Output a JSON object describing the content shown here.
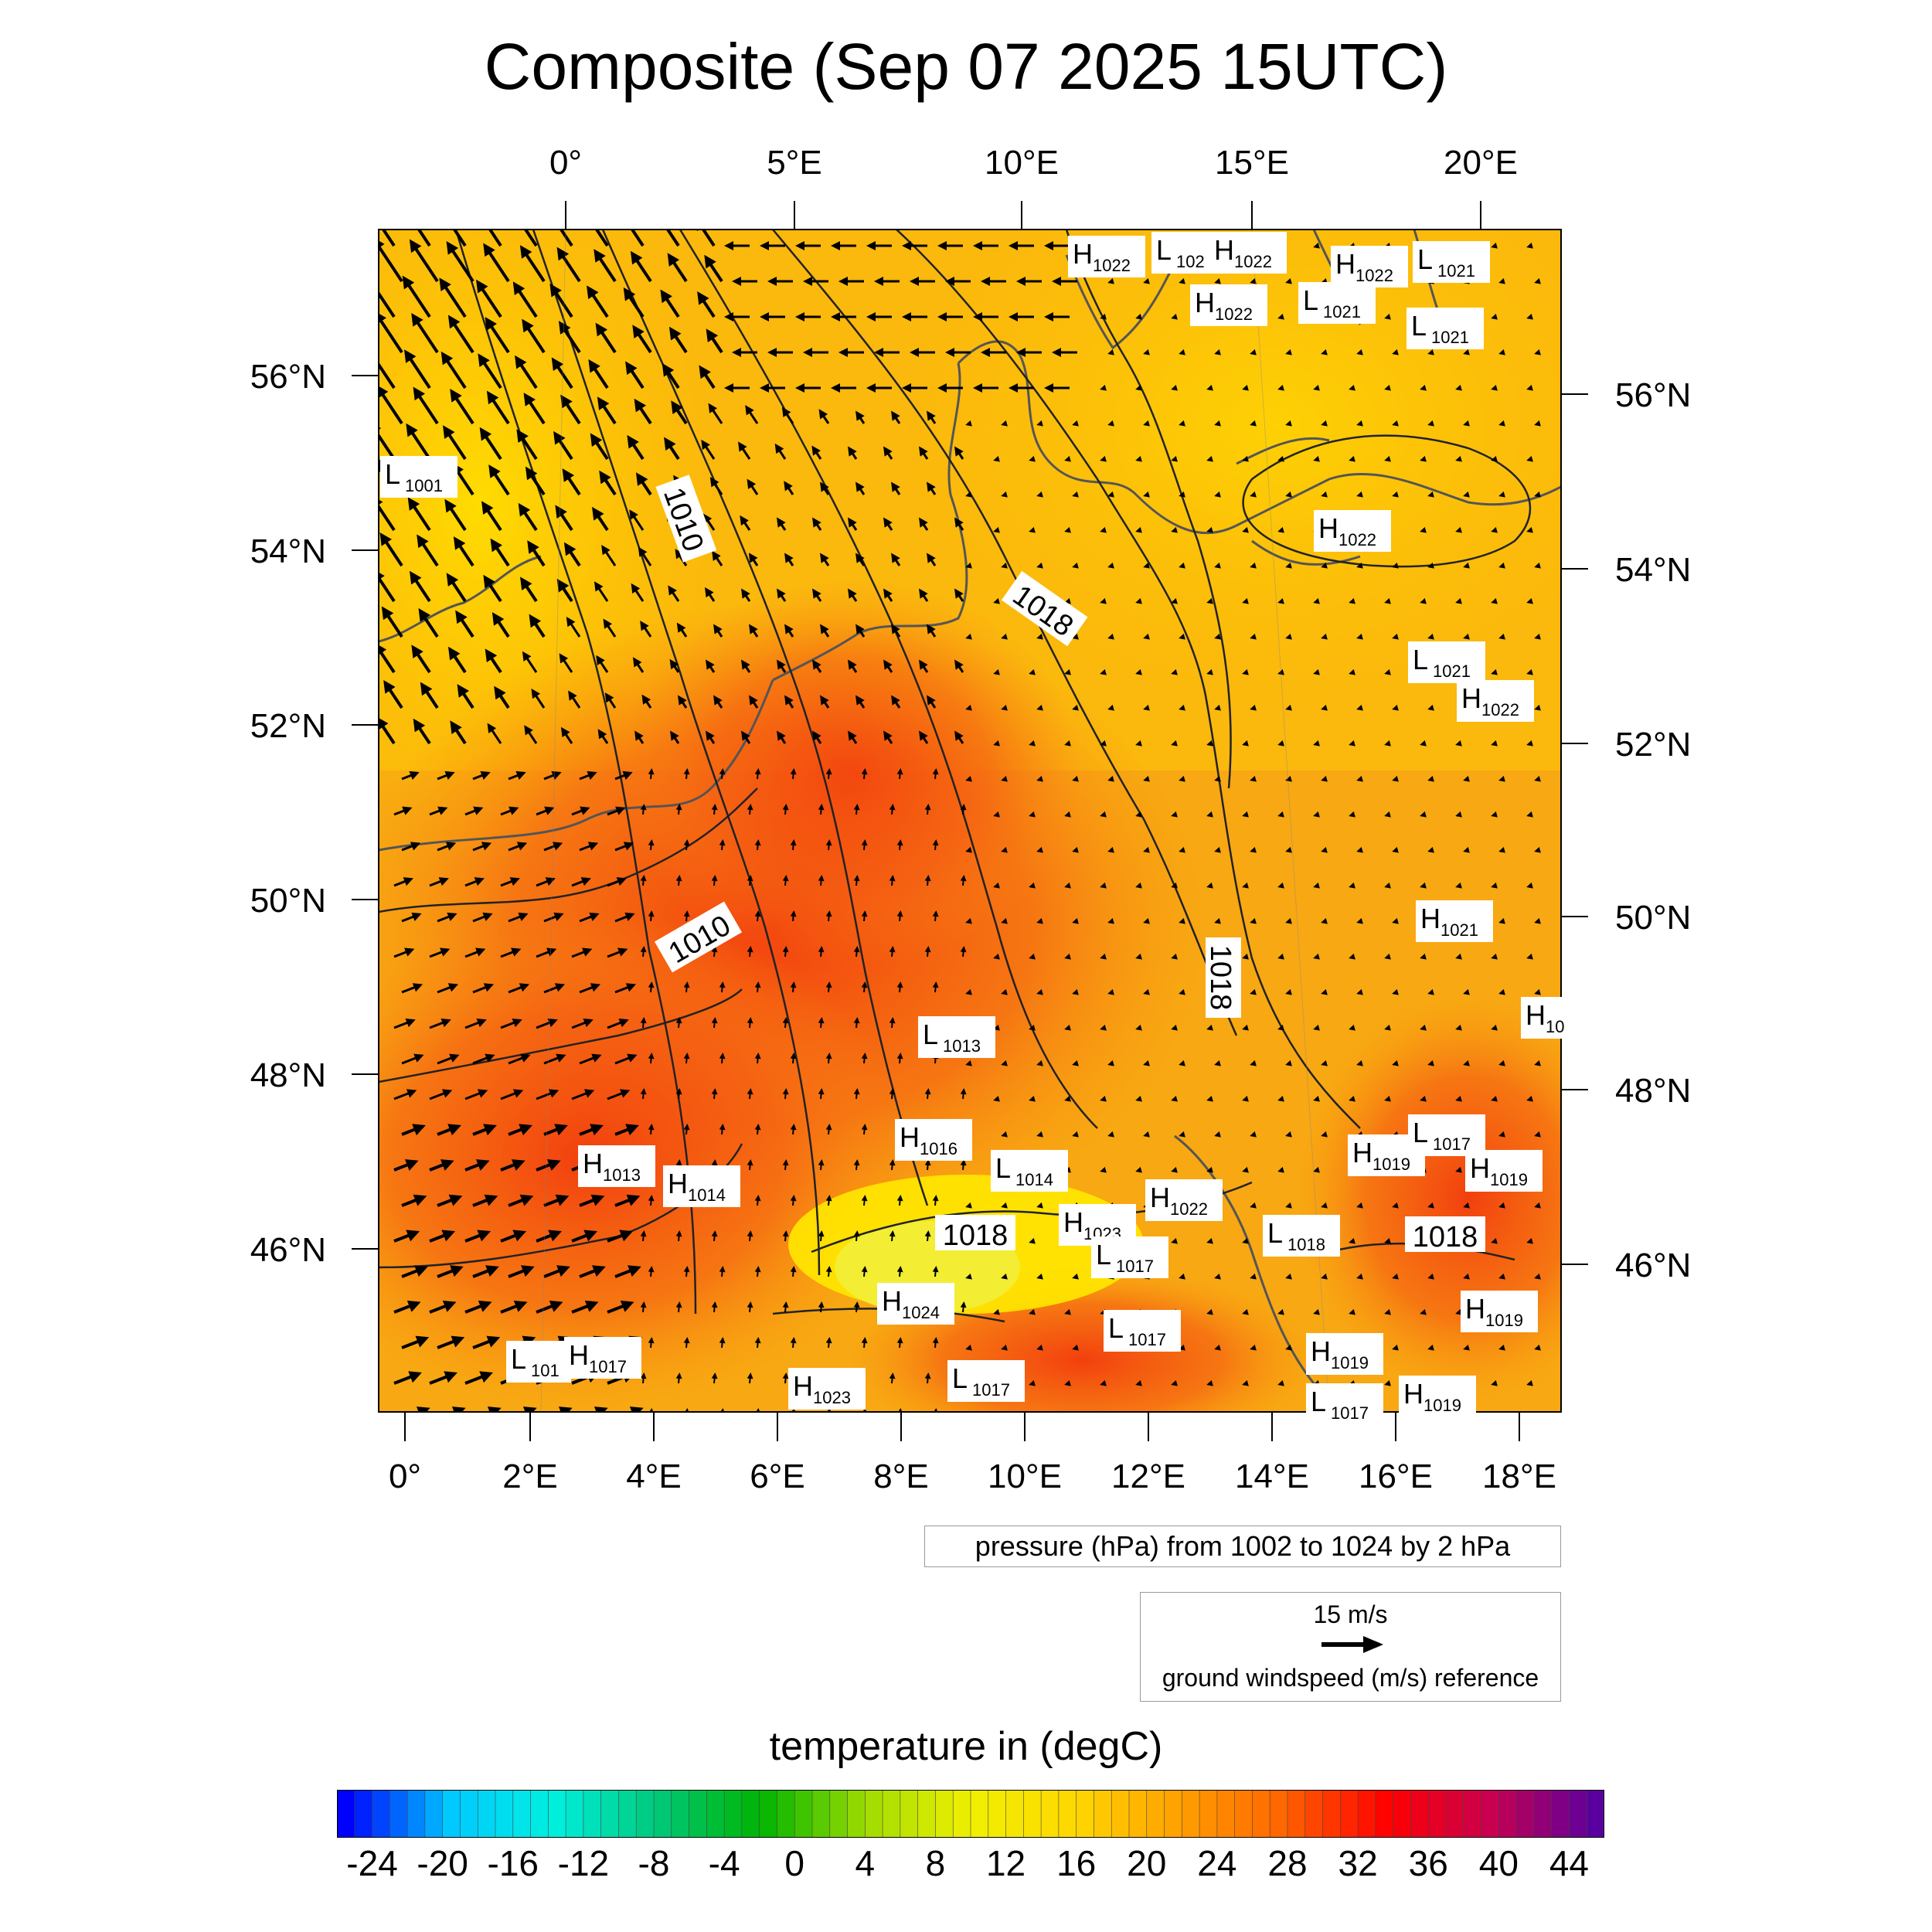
{
  "title": "Composite (Sep 07 2025 15UTC)",
  "top_lon_labels": [
    "0°",
    "5°E",
    "10°E",
    "15°E",
    "20°E"
  ],
  "bottom_lon_labels": [
    "0°",
    "2°E",
    "4°E",
    "6°E",
    "8°E",
    "10°E",
    "12°E",
    "14°E",
    "16°E",
    "18°E"
  ],
  "left_lat_labels": [
    "56°N",
    "54°N",
    "52°N",
    "50°N",
    "48°N",
    "46°N"
  ],
  "right_lat_labels": [
    "56°N",
    "54°N",
    "52°N",
    "50°N",
    "48°N",
    "46°N"
  ],
  "contour_labels": [
    "1010",
    "1010",
    "1018",
    "1018",
    "1018",
    "1018"
  ],
  "pressure_centers": [
    {
      "type": "H",
      "value": "1022"
    },
    {
      "type": "L",
      "value": "102"
    },
    {
      "type": "H",
      "value": "1022"
    },
    {
      "type": "H",
      "value": "1022"
    },
    {
      "type": "L",
      "value": "1021"
    },
    {
      "type": "H",
      "value": "1022"
    },
    {
      "type": "L",
      "value": "1021"
    },
    {
      "type": "L",
      "value": "1021"
    },
    {
      "type": "L",
      "value": "1001"
    },
    {
      "type": "H",
      "value": "1022"
    },
    {
      "type": "L",
      "value": "1021"
    },
    {
      "type": "H",
      "value": "1022"
    },
    {
      "type": "H",
      "value": "1021"
    },
    {
      "type": "H",
      "value": "10"
    },
    {
      "type": "L",
      "value": "1013"
    },
    {
      "type": "H",
      "value": "1016"
    },
    {
      "type": "L",
      "value": "1014"
    },
    {
      "type": "H",
      "value": "1013"
    },
    {
      "type": "H",
      "value": "1014"
    },
    {
      "type": "H",
      "value": "1022"
    },
    {
      "type": "H",
      "value": "1023"
    },
    {
      "type": "L",
      "value": "1017"
    },
    {
      "type": "L",
      "value": "1018"
    },
    {
      "type": "H",
      "value": "1019"
    },
    {
      "type": "L",
      "value": "1017"
    },
    {
      "type": "H",
      "value": "1019"
    },
    {
      "type": "H",
      "value": "1024"
    },
    {
      "type": "L",
      "value": "1017"
    },
    {
      "type": "H",
      "value": "1019"
    },
    {
      "type": "L",
      "value": "101"
    },
    {
      "type": "H",
      "value": "1017"
    },
    {
      "type": "H",
      "value": "1023"
    },
    {
      "type": "L",
      "value": "1017"
    },
    {
      "type": "L",
      "value": "1017"
    },
    {
      "type": "H",
      "value": "1019"
    },
    {
      "type": "H",
      "value": "1019"
    }
  ],
  "pressure_legend": "pressure (hPa) from 1002 to 1024 by 2 hPa",
  "wind_reference": {
    "value": "15 m/s",
    "label": "ground windspeed (m/s) reference"
  },
  "colorbar": {
    "title": "temperature in (degC)",
    "tick_labels": [
      "-24",
      "-20",
      "-16",
      "-12",
      "-8",
      "-4",
      "0",
      "4",
      "8",
      "12",
      "16",
      "20",
      "24",
      "28",
      "32",
      "36",
      "40",
      "44"
    ],
    "range": [
      -26,
      46
    ],
    "colors": [
      "#0000ff",
      "#00c8ff",
      "#00f0e0",
      "#00c878",
      "#00b400",
      "#a0dc00",
      "#f0f000",
      "#ffd700",
      "#ffa000",
      "#ff6400",
      "#ff0000",
      "#c80050",
      "#5a00a0"
    ]
  },
  "colors": {
    "warm_core": "#f04010",
    "mid": "#f8a010",
    "cool": "#ffd000",
    "contour": "#222222",
    "coast": "#555555"
  }
}
